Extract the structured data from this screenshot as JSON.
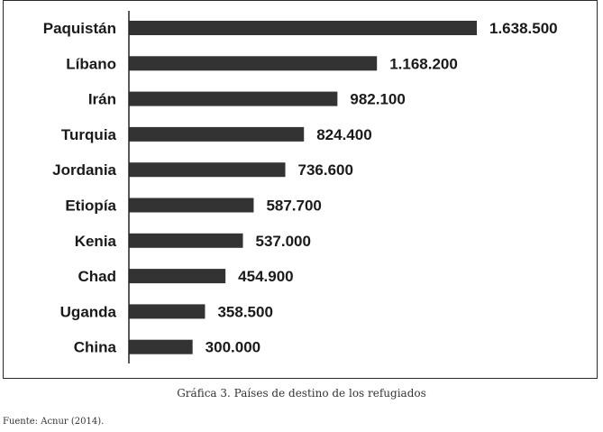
{
  "chart_data": {
    "type": "bar",
    "orientation": "horizontal",
    "categories": [
      "Paquistán",
      "Líbano",
      "Irán",
      "Turquia",
      "Jordania",
      "Etiopía",
      "Kenia",
      "Chad",
      "Uganda",
      "China"
    ],
    "values": [
      1638500,
      1168200,
      982100,
      824400,
      736600,
      587700,
      537000,
      454900,
      358500,
      300000
    ],
    "value_labels": [
      "1.638.500",
      "1.168.200",
      "982.100",
      "824.400",
      "736.600",
      "587.700",
      "537.000",
      "454.900",
      "358.500",
      "300.000"
    ],
    "title": "",
    "xlabel": "",
    "ylabel": "",
    "xlim": [
      0,
      1638500
    ],
    "grid": false,
    "legend": "none",
    "bar_color": "#333333"
  },
  "caption": "Gráfica 3. Países de destino de los refugiados",
  "source": "Fuente: Acnur (2014)."
}
